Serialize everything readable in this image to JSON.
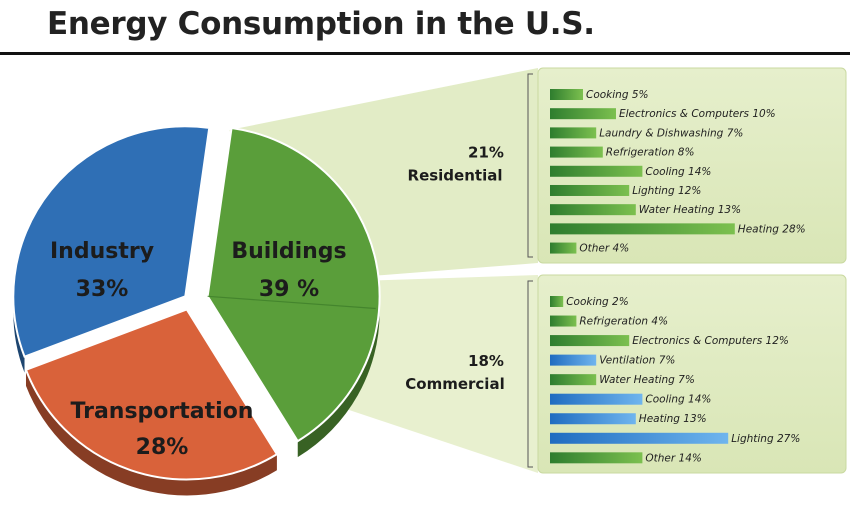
{
  "title": "Energy Consumption in the U.S.",
  "chart_data": [
    {
      "type": "pie",
      "slices": [
        {
          "name": "Industry",
          "label": "Industry",
          "value_label": "33%",
          "value": 33,
          "color": "#2f6fb5"
        },
        {
          "name": "Buildings",
          "label": "Buildings",
          "value_label": "39 %",
          "value": 39,
          "color": "#5a9e3a"
        },
        {
          "name": "Transportation",
          "label": "Transportation",
          "value_label": "28%",
          "value": 28,
          "color": "#d9623a"
        }
      ]
    },
    {
      "type": "bar",
      "group_percent": "21%",
      "group_name": "Residential",
      "categories": [
        "Cooking",
        "Electronics & Computers",
        "Laundry & Dishwashing",
        "Refrigeration",
        "Cooling",
        "Lighting",
        "Water Heating",
        "Heating",
        "Other"
      ],
      "values": [
        5,
        10,
        7,
        8,
        14,
        12,
        13,
        28,
        4
      ],
      "labels": [
        "Cooking 5%",
        "Electronics & Computers 10%",
        "Laundry & Dishwashing 7%",
        "Refrigeration 8%",
        "Cooling 14%",
        "Lighting 12%",
        "Water Heating 13%",
        "Heating 28%",
        "Other 4%"
      ],
      "colors": [
        "#4a9a3c",
        "#4a9a3c",
        "#4a9a3c",
        "#4a9a3c",
        "#4a9a3c",
        "#4a9a3c",
        "#4a9a3c",
        "#4a9a3c",
        "#4a9a3c"
      ]
    },
    {
      "type": "bar",
      "group_percent": "18%",
      "group_name": "Commercial",
      "categories": [
        "Cooking",
        "Refrigeration",
        "Electronics & Computers",
        "Ventilation",
        "Water Heating",
        "Cooling",
        "Heating",
        "Lighting",
        "Other"
      ],
      "values": [
        2,
        4,
        12,
        7,
        7,
        14,
        13,
        27,
        14
      ],
      "labels": [
        "Cooking 2%",
        "Refrigeration 4%",
        "Electronics & Computers 12%",
        "Ventilation 7%",
        "Water Heating 7%",
        "Cooling 14%",
        "Heating 13%",
        "Lighting 27%",
        "Other 14%"
      ],
      "colors": [
        "#4a9a3c",
        "#4a9a3c",
        "#4a9a3c",
        "#2f7fd0",
        "#4a9a3c",
        "#2f7fd0",
        "#2f7fd0",
        "#2f7fd0",
        "#4a9a3c"
      ]
    }
  ]
}
